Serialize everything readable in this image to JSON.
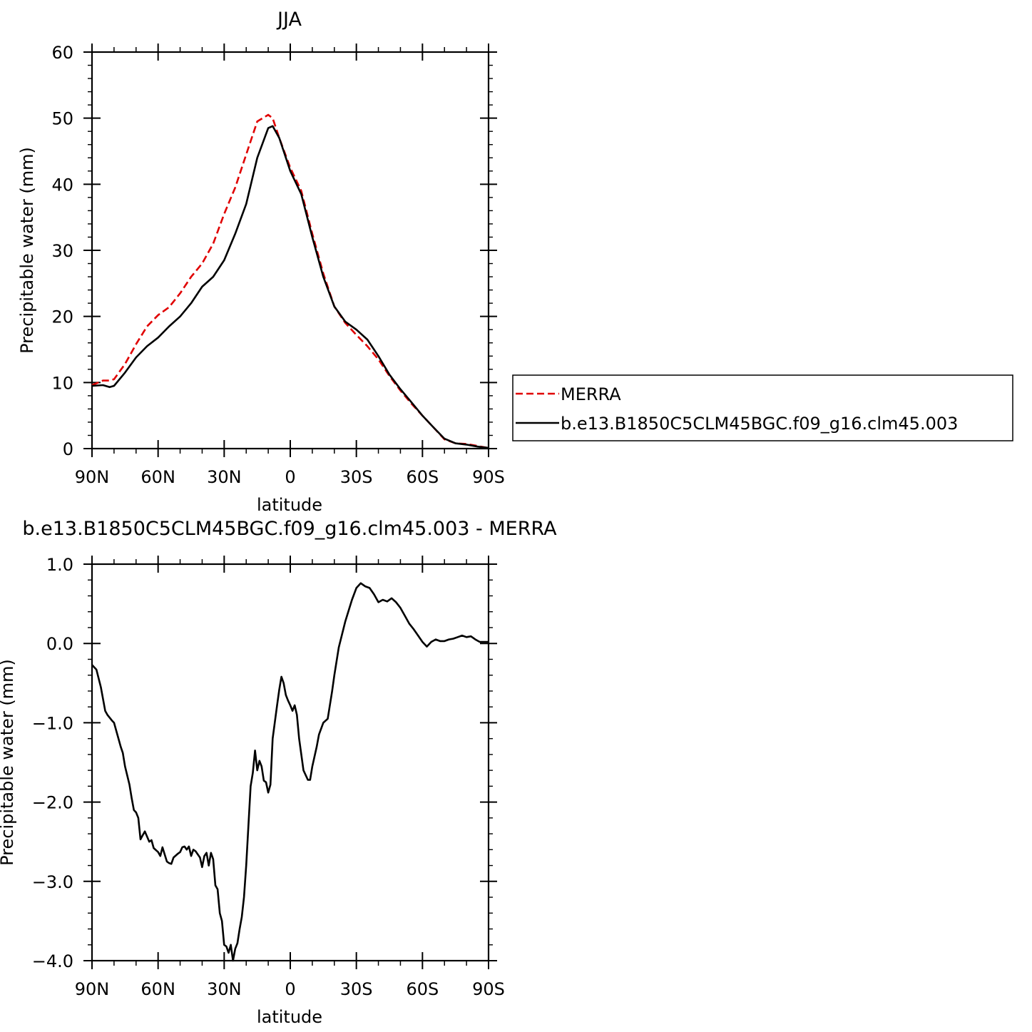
{
  "chart_data": [
    {
      "type": "line",
      "title": "JJA",
      "xlabel": "latitude",
      "ylabel": "Precipitable water (mm)",
      "xlim": [
        90,
        -90
      ],
      "ylim": [
        0,
        60
      ],
      "x_ticks": [
        90,
        60,
        30,
        0,
        -30,
        -60,
        -90
      ],
      "x_tick_labels": [
        "90N",
        "60N",
        "30N",
        "0",
        "30S",
        "60S",
        "90S"
      ],
      "y_ticks": [
        0,
        10,
        20,
        30,
        40,
        50,
        60
      ],
      "y_tick_labels": [
        "0",
        "10",
        "20",
        "30",
        "40",
        "50",
        "60"
      ],
      "legend": "right",
      "series": [
        {
          "name": "MERRA",
          "color": "#e00000",
          "dash": "dashed",
          "x": [
            90,
            85,
            82,
            80,
            75,
            70,
            65,
            60,
            55,
            50,
            45,
            40,
            35,
            30,
            25,
            20,
            15,
            10,
            8,
            5,
            0,
            -5,
            -10,
            -15,
            -20,
            -25,
            -30,
            -35,
            -40,
            -45,
            -50,
            -55,
            -60,
            -65,
            -70,
            -75,
            -80,
            -85,
            -90
          ],
          "values": [
            9.6,
            10.3,
            10.3,
            10.5,
            12.8,
            15.8,
            18.5,
            20.2,
            21.4,
            23.5,
            26.0,
            28.0,
            31.0,
            35.5,
            39.5,
            44.5,
            49.5,
            50.5,
            50.0,
            47.0,
            42.5,
            39.0,
            32.5,
            26.5,
            21.5,
            19.0,
            17.2,
            15.5,
            13.5,
            11.0,
            8.8,
            6.8,
            5.0,
            3.2,
            1.4,
            0.8,
            0.7,
            0.4,
            0.1
          ]
        },
        {
          "name": "b.e13.B1850C5CLM45BGC.f09_g16.clm45.003",
          "color": "#000000",
          "dash": "solid",
          "x": [
            90,
            85,
            82,
            80,
            75,
            70,
            65,
            60,
            55,
            50,
            45,
            40,
            35,
            30,
            25,
            20,
            15,
            10,
            8,
            5,
            0,
            -5,
            -10,
            -15,
            -20,
            -25,
            -30,
            -35,
            -40,
            -45,
            -50,
            -55,
            -60,
            -65,
            -70,
            -75,
            -80,
            -85,
            -90
          ],
          "values": [
            9.5,
            9.6,
            9.3,
            9.5,
            11.5,
            13.8,
            15.5,
            16.8,
            18.5,
            20.0,
            22.0,
            24.5,
            26.0,
            28.5,
            32.5,
            37.0,
            44.0,
            48.5,
            48.8,
            47.0,
            42.0,
            38.5,
            32.0,
            26.0,
            21.5,
            19.2,
            18.0,
            16.5,
            14.0,
            11.2,
            9.0,
            7.0,
            5.0,
            3.2,
            1.5,
            0.8,
            0.6,
            0.3,
            0.1
          ]
        }
      ]
    },
    {
      "type": "line",
      "title": "b.e13.B1850C5CLM45BGC.f09_g16.clm45.003 - MERRA",
      "xlabel": "latitude",
      "ylabel": "Precipitable water (mm)",
      "xlim": [
        90,
        -90
      ],
      "ylim": [
        -4.0,
        1.0
      ],
      "x_ticks": [
        90,
        60,
        30,
        0,
        -30,
        -60,
        -90
      ],
      "x_tick_labels": [
        "90N",
        "60N",
        "30N",
        "0",
        "30S",
        "60S",
        "90S"
      ],
      "y_ticks": [
        1.0,
        0.0,
        -1.0,
        -2.0,
        -3.0,
        -4.0
      ],
      "y_tick_labels": [
        "1.0",
        "0.0",
        "−1.0",
        "−2.0",
        "−3.0",
        "−4.0"
      ],
      "series": [
        {
          "color": "#000000",
          "dash": "solid",
          "x": [
            90,
            88,
            86,
            84,
            83,
            81,
            80,
            78,
            77,
            76,
            75,
            73,
            72,
            71,
            70,
            69,
            68,
            67,
            66,
            64,
            63,
            62,
            60,
            59,
            58,
            56,
            55,
            54,
            53,
            51,
            50,
            49,
            48,
            47,
            46,
            45,
            44,
            43,
            41,
            40,
            39,
            38,
            37,
            36,
            35,
            34,
            33,
            32,
            31,
            30,
            29,
            28,
            27,
            26,
            25,
            24,
            23,
            22,
            21,
            20,
            19,
            18,
            17,
            16,
            15,
            14,
            13,
            12,
            11,
            10,
            9,
            8,
            6,
            5,
            4,
            3,
            2,
            1,
            0,
            -1,
            -2,
            -3,
            -4,
            -6,
            -8,
            -9,
            -10,
            -12,
            -13,
            -15,
            -17,
            -19,
            -20,
            -22,
            -25,
            -28,
            -30,
            -32,
            -34,
            -36,
            -38,
            -40,
            -42,
            -44,
            -46,
            -48,
            -50,
            -52,
            -54,
            -56,
            -58,
            -60,
            -62,
            -64,
            -66,
            -68,
            -70,
            -72,
            -74,
            -76,
            -78,
            -80,
            -82,
            -84,
            -86,
            -88,
            -90
          ],
          "values": [
            -0.27,
            -0.33,
            -0.55,
            -0.85,
            -0.9,
            -0.97,
            -1.0,
            -1.2,
            -1.3,
            -1.38,
            -1.55,
            -1.78,
            -1.95,
            -2.1,
            -2.13,
            -2.2,
            -2.47,
            -2.42,
            -2.37,
            -2.5,
            -2.48,
            -2.58,
            -2.63,
            -2.68,
            -2.57,
            -2.75,
            -2.77,
            -2.78,
            -2.7,
            -2.65,
            -2.63,
            -2.57,
            -2.56,
            -2.6,
            -2.56,
            -2.68,
            -2.6,
            -2.62,
            -2.7,
            -2.82,
            -2.68,
            -2.64,
            -2.8,
            -2.64,
            -2.72,
            -3.05,
            -3.1,
            -3.4,
            -3.5,
            -3.8,
            -3.82,
            -3.9,
            -3.8,
            -4.0,
            -3.85,
            -3.78,
            -3.6,
            -3.45,
            -3.2,
            -2.8,
            -2.3,
            -1.8,
            -1.63,
            -1.35,
            -1.6,
            -1.48,
            -1.55,
            -1.73,
            -1.75,
            -1.88,
            -1.78,
            -1.2,
            -0.78,
            -0.58,
            -0.42,
            -0.5,
            -0.65,
            -0.72,
            -0.78,
            -0.85,
            -0.78,
            -0.9,
            -1.2,
            -1.6,
            -1.72,
            -1.72,
            -1.55,
            -1.3,
            -1.15,
            -1.0,
            -0.95,
            -0.6,
            -0.4,
            -0.05,
            0.28,
            0.55,
            0.7,
            0.76,
            0.72,
            0.7,
            0.62,
            0.52,
            0.55,
            0.53,
            0.57,
            0.52,
            0.45,
            0.35,
            0.25,
            0.18,
            0.1,
            0.02,
            -0.04,
            0.02,
            0.05,
            0.03,
            0.03,
            0.05,
            0.06,
            0.08,
            0.1,
            0.08,
            0.09,
            0.05,
            0.02,
            0.02,
            0.02
          ]
        }
      ]
    }
  ]
}
